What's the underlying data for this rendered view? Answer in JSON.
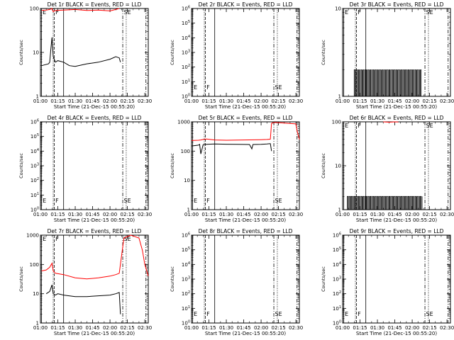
{
  "figure": {
    "tick_labels": [
      "01:00",
      "01:15",
      "01:30",
      "01:45",
      "02:00",
      "02:15",
      "02:30"
    ],
    "xlabel": "Start Time (21-Dec-15 00:55:20)",
    "marker_labels": [
      "E",
      "F",
      "SE"
    ]
  },
  "colors": {
    "events": "#000000",
    "lld": "#ff0000"
  },
  "chart_data": [
    {
      "type": "line",
      "panel": "Det 1r",
      "title": "Det 1r BLACK = Events, RED = LLD",
      "xlabel": "Start Time (21-Dec-15 00:55:20)",
      "ylabel": "Counts/sec",
      "xlim": [
        "01:00",
        "02:33"
      ],
      "ylog": true,
      "ylim": [
        1,
        100
      ],
      "yticks": [
        {
          "v": 1,
          "t": "1"
        },
        {
          "v": 10,
          "t": "10"
        },
        {
          "v": 100,
          "t": "100"
        }
      ],
      "series": [
        {
          "name": "BLACK = Events",
          "color": "#000000",
          "x": [
            "01:01",
            "01:07",
            "01:08",
            "01:09",
            "01:10",
            "01:11",
            "01:13",
            "01:15",
            "01:20",
            "01:25",
            "01:30",
            "01:40",
            "01:50",
            "02:00",
            "02:05",
            "02:08",
            "02:09"
          ],
          "y": [
            5,
            5.5,
            6,
            12,
            22,
            8,
            6,
            6.5,
            6,
            5,
            4.8,
            5.5,
            6,
            7,
            8,
            7.5,
            6
          ]
        },
        {
          "name": "RED = LLD",
          "color": "#ff0000",
          "x": [
            "01:01",
            "01:05",
            "01:08",
            "01:10",
            "01:11",
            "01:13",
            "01:20",
            "01:30",
            "01:40",
            "01:50",
            "02:00",
            "02:05",
            "02:08"
          ],
          "y": [
            90,
            92,
            95,
            100,
            85,
            90,
            92,
            95,
            90,
            92,
            88,
            95,
            100
          ]
        }
      ]
    },
    {
      "type": "line",
      "panel": "Det 2r",
      "title": "Det 2r BLACK = Events, RED = LLD",
      "xlabel": "Start Time (21-Dec-15 00:55:20)",
      "ylabel": "Counts/sec",
      "xlim": [
        "01:00",
        "02:33"
      ],
      "ylog": true,
      "ylim": [
        1,
        1000000
      ],
      "yticks": [
        {
          "v": 1,
          "t": "10^0"
        },
        {
          "v": 10,
          "t": "10^1"
        },
        {
          "v": 100,
          "t": "10^2"
        },
        {
          "v": 1000,
          "t": "10^3"
        },
        {
          "v": 10000,
          "t": "10^4"
        },
        {
          "v": 100000,
          "t": "10^5"
        },
        {
          "v": 1000000,
          "t": "10^6"
        }
      ],
      "series": []
    },
    {
      "type": "line",
      "panel": "Det 3r",
      "title": "Det 3r BLACK = Events, RED = LLD",
      "xlabel": "Start Time (21-Dec-15 00:55:20)",
      "ylabel": "Counts/sec",
      "xlim": [
        "01:00",
        "02:33"
      ],
      "ylog": true,
      "ylim": [
        1,
        10
      ],
      "yticks": [
        {
          "v": 1,
          "t": "1"
        },
        {
          "v": 10,
          "t": "10"
        }
      ],
      "series": [
        {
          "name": "BLACK = Events",
          "color": "#000000",
          "style": "toggle",
          "low": 1,
          "high": 2,
          "x_range": [
            "01:10",
            "02:08"
          ],
          "y": []
        }
      ]
    },
    {
      "type": "line",
      "panel": "Det 4r",
      "title": "Det 4r BLACK = Events, RED = LLD",
      "xlabel": "Start Time (21-Dec-15 00:55:20)",
      "ylabel": "Counts/sec",
      "xlim": [
        "01:00",
        "02:33"
      ],
      "ylog": true,
      "ylim": [
        1,
        1000000
      ],
      "yticks": [
        {
          "v": 1,
          "t": "10^0"
        },
        {
          "v": 10,
          "t": "10^1"
        },
        {
          "v": 100,
          "t": "10^2"
        },
        {
          "v": 1000,
          "t": "10^3"
        },
        {
          "v": 10000,
          "t": "10^4"
        },
        {
          "v": 100000,
          "t": "10^5"
        },
        {
          "v": 1000000,
          "t": "10^6"
        }
      ],
      "series": []
    },
    {
      "type": "line",
      "panel": "Det 5r",
      "title": "Det 5r BLACK = Events, RED = LLD",
      "xlabel": "Start Time (21-Dec-15 00:55:20)",
      "ylabel": "Counts/sec",
      "xlim": [
        "01:00",
        "02:33"
      ],
      "ylog": true,
      "ylim": [
        1,
        1000
      ],
      "yticks": [
        {
          "v": 1,
          "t": "1"
        },
        {
          "v": 10,
          "t": "10"
        },
        {
          "v": 100,
          "t": "100"
        },
        {
          "v": 1000,
          "t": "1000"
        }
      ],
      "series": [
        {
          "name": "BLACK = Events",
          "color": "#000000",
          "x": [
            "01:00",
            "01:06",
            "01:07",
            "01:08",
            "01:10",
            "01:13",
            "01:20",
            "01:30",
            "01:40",
            "01:50",
            "01:52",
            "01:53",
            "02:00",
            "02:05",
            "02:08",
            "02:09"
          ],
          "y": [
            150,
            160,
            170,
            80,
            165,
            170,
            175,
            172,
            170,
            168,
            120,
            168,
            170,
            175,
            180,
            100
          ]
        },
        {
          "name": "RED = LLD",
          "color": "#ff0000",
          "x": [
            "01:00",
            "01:06",
            "01:08",
            "01:10",
            "01:13",
            "01:20",
            "01:30",
            "01:40",
            "01:50",
            "02:00",
            "02:05",
            "02:08",
            "02:09",
            "02:12",
            "02:30",
            "02:31",
            "02:33"
          ],
          "y": [
            230,
            235,
            240,
            250,
            260,
            240,
            235,
            238,
            242,
            245,
            250,
            255,
            900,
            950,
            850,
            500,
            250
          ]
        }
      ]
    },
    {
      "type": "line",
      "panel": "Det 6r",
      "title": "Det 6r BLACK = Events, RED = LLD",
      "xlabel": "Start Time (21-Dec-15 00:55:20)",
      "ylabel": "Counts/sec",
      "xlim": [
        "01:00",
        "02:33"
      ],
      "ylog": true,
      "ylim": [
        1,
        100
      ],
      "yticks": [
        {
          "v": 1,
          "t": "1"
        },
        {
          "v": 10,
          "t": "10"
        },
        {
          "v": 100,
          "t": "100"
        }
      ],
      "series": [
        {
          "name": "BLACK = Events",
          "color": "#000000",
          "style": "toggle",
          "low": 1,
          "high": 2,
          "x_range": [
            "01:04",
            "02:09"
          ],
          "y": []
        },
        {
          "name": "RED = LLD",
          "color": "#ff0000",
          "x": [
            "01:35",
            "01:40",
            "01:45",
            "01:48"
          ],
          "y": [
            100,
            98,
            100,
            99
          ]
        }
      ]
    },
    {
      "type": "line",
      "panel": "Det 7r",
      "title": "Det 7r BLACK = Events, RED = LLD",
      "xlabel": "Start Time (21-Dec-15 00:55:20)",
      "ylabel": "Counts/sec",
      "xlim": [
        "01:00",
        "02:33"
      ],
      "ylog": true,
      "ylim": [
        1,
        1000
      ],
      "yticks": [
        {
          "v": 1,
          "t": "1"
        },
        {
          "v": 10,
          "t": "10"
        },
        {
          "v": 100,
          "t": "100"
        },
        {
          "v": 1000,
          "t": "1000"
        }
      ],
      "series": [
        {
          "name": "BLACK = Events",
          "color": "#000000",
          "x": [
            "01:05",
            "01:08",
            "01:10",
            "01:11",
            "01:13",
            "01:15",
            "01:20",
            "01:30",
            "01:40",
            "01:50",
            "02:00",
            "02:05",
            "02:08",
            "02:09"
          ],
          "y": [
            10,
            12,
            20,
            10,
            9,
            10,
            9,
            8,
            8,
            8.5,
            9,
            10,
            11,
            2
          ]
        },
        {
          "name": "RED = LLD",
          "color": "#ff0000",
          "x": [
            "01:01",
            "01:05",
            "01:08",
            "01:10",
            "01:11",
            "01:13",
            "01:20",
            "01:30",
            "01:40",
            "01:50",
            "02:00",
            "02:05",
            "02:08",
            "02:12",
            "02:15",
            "02:18",
            "02:25",
            "02:28",
            "02:30",
            "02:33"
          ],
          "y": [
            60,
            65,
            80,
            110,
            60,
            50,
            45,
            35,
            32,
            35,
            40,
            45,
            50,
            800,
            900,
            1000,
            800,
            300,
            100,
            40
          ]
        }
      ]
    },
    {
      "type": "line",
      "panel": "Det 8r",
      "title": "Det 8r BLACK = Events, RED = LLD",
      "xlabel": "Start Time (21-Dec-15 00:55:20)",
      "ylabel": "Counts/sec",
      "xlim": [
        "01:00",
        "02:33"
      ],
      "ylog": true,
      "ylim": [
        1,
        1000000
      ],
      "yticks": [
        {
          "v": 1,
          "t": "10^0"
        },
        {
          "v": 10,
          "t": "10^1"
        },
        {
          "v": 100,
          "t": "10^2"
        },
        {
          "v": 1000,
          "t": "10^3"
        },
        {
          "v": 10000,
          "t": "10^4"
        },
        {
          "v": 100000,
          "t": "10^5"
        },
        {
          "v": 1000000,
          "t": "10^6"
        }
      ],
      "series": []
    },
    {
      "type": "line",
      "panel": "Det 9r",
      "title": "Det 9r BLACK = Events, RED = LLD",
      "xlabel": "Start Time (21-Dec-15 00:55:20)",
      "ylabel": "Counts/sec",
      "xlim": [
        "01:00",
        "02:33"
      ],
      "ylog": true,
      "ylim": [
        1,
        1000000
      ],
      "yticks": [
        {
          "v": 1,
          "t": "10^0"
        },
        {
          "v": 10,
          "t": "10^1"
        },
        {
          "v": 100,
          "t": "10^2"
        },
        {
          "v": 1000,
          "t": "10^3"
        },
        {
          "v": 10000,
          "t": "10^4"
        },
        {
          "v": 100000,
          "t": "10^5"
        },
        {
          "v": 1000000,
          "t": "10^6"
        }
      ],
      "series": []
    }
  ]
}
